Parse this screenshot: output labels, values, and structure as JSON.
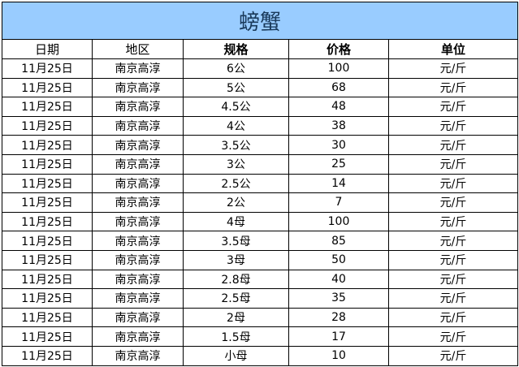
{
  "title": "螃蟹",
  "columns": [
    "日期",
    "地区",
    "规格",
    "价格",
    "单位"
  ],
  "rows": [
    [
      "11月25日",
      "南京高淳",
      "6公",
      "100",
      "元/斤"
    ],
    [
      "11月25日",
      "南京高淳",
      "5公",
      "68",
      "元/斤"
    ],
    [
      "11月25日",
      "南京高淳",
      "4.5公",
      "48",
      "元/斤"
    ],
    [
      "11月25日",
      "南京高淳",
      "4公",
      "38",
      "元/斤"
    ],
    [
      "11月25日",
      "南京高淳",
      "3.5公",
      "30",
      "元/斤"
    ],
    [
      "11月25日",
      "南京高淳",
      "3公",
      "25",
      "元/斤"
    ],
    [
      "11月25日",
      "南京高淳",
      "2.5公",
      "14",
      "元/斤"
    ],
    [
      "11月25日",
      "南京高淳",
      "2公",
      "7",
      "元/斤"
    ],
    [
      "11月25日",
      "南京高淳",
      "4母",
      "100",
      "元/斤"
    ],
    [
      "11月25日",
      "南京高淳",
      "3.5母",
      "85",
      "元/斤"
    ],
    [
      "11月25日",
      "南京高淳",
      "3母",
      "50",
      "元/斤"
    ],
    [
      "11月25日",
      "南京高淳",
      "2.8母",
      "40",
      "元/斤"
    ],
    [
      "11月25日",
      "南京高淳",
      "2.5母",
      "35",
      "元/斤"
    ],
    [
      "11月25日",
      "南京高淳",
      "2母",
      "28",
      "元/斤"
    ],
    [
      "11月25日",
      "南京高淳",
      "1.5母",
      "17",
      "元/斤"
    ],
    [
      "11月25日",
      "南京高淳",
      "小母",
      "10",
      "元/斤"
    ]
  ],
  "colors": {
    "title_bg": "#99ccff",
    "border": "#000000"
  }
}
